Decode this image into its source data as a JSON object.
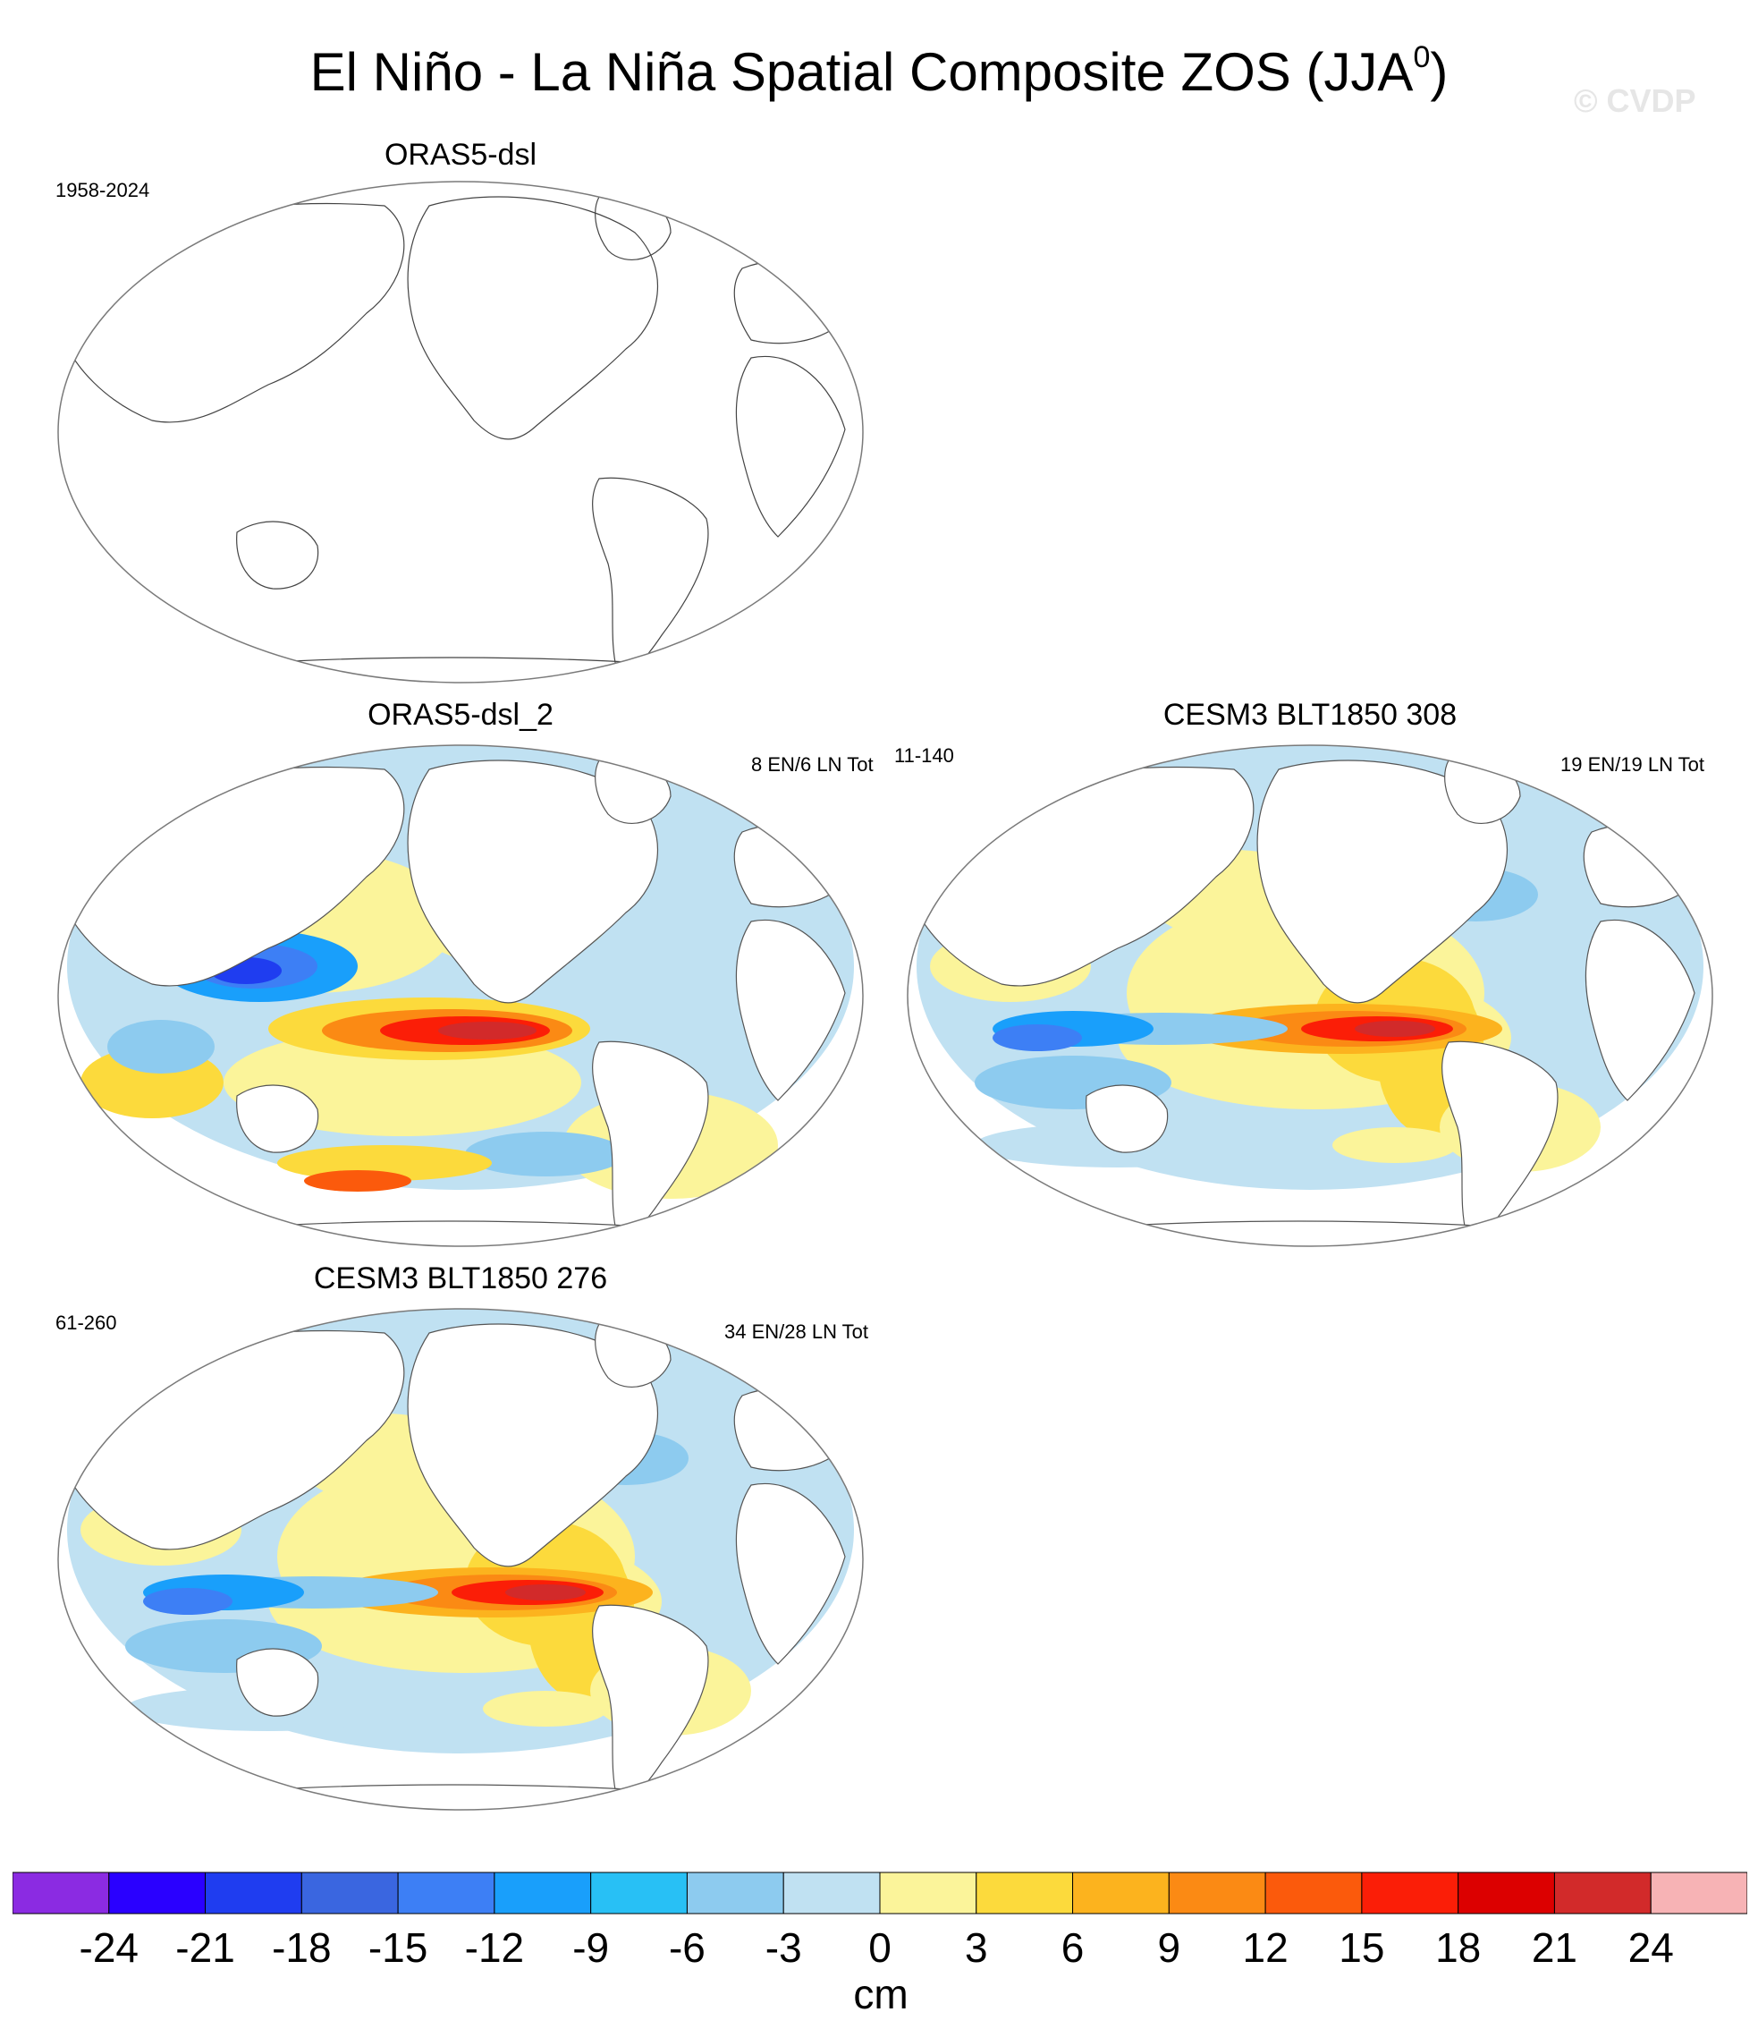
{
  "figure": {
    "title": "El Niño - La Niña Spatial Composite ZOS (JJA",
    "title_sup": "0",
    "title_close": ")",
    "watermark": "© CVDP"
  },
  "panels": [
    {
      "id": "p1",
      "title": "ORAS5-dsl",
      "left_note": "1958-2024",
      "right_note": "",
      "mid_note": "",
      "filled": false
    },
    {
      "id": "p2",
      "title": "ORAS5-dsl_2",
      "left_note": "",
      "right_note": "8 EN/6 LN Tot",
      "mid_note": "11-140",
      "filled": true,
      "pattern": "obs"
    },
    {
      "id": "p3",
      "title": "CESM3 BLT1850 308",
      "left_note": "",
      "right_note": "19 EN/19 LN Tot",
      "mid_note": "",
      "filled": true,
      "pattern": "model"
    },
    {
      "id": "p4",
      "title": "CESM3 BLT1850 276",
      "left_note": "61-260",
      "right_note": "34 EN/28 LN Tot",
      "mid_note": "",
      "filled": true,
      "pattern": "model"
    }
  ],
  "colorbar": {
    "units": "cm",
    "labels": [
      "-24",
      "-21",
      "-18",
      "-15",
      "-12",
      "-9",
      "-6",
      "-3",
      "0",
      "3",
      "6",
      "9",
      "12",
      "15",
      "18",
      "21",
      "24"
    ],
    "colors": [
      "#8b2be2",
      "#2a00ff",
      "#1f3df0",
      "#3a66e0",
      "#3d7ff5",
      "#199ffb",
      "#28c0f5",
      "#8dcbef",
      "#c0e1f2",
      "#fbf49a",
      "#fcda3c",
      "#fcb31e",
      "#fb8a14",
      "#fb5a0c",
      "#fb1e07",
      "#dc0000",
      "#d22a2a",
      "#f7b3b5"
    ]
  }
}
